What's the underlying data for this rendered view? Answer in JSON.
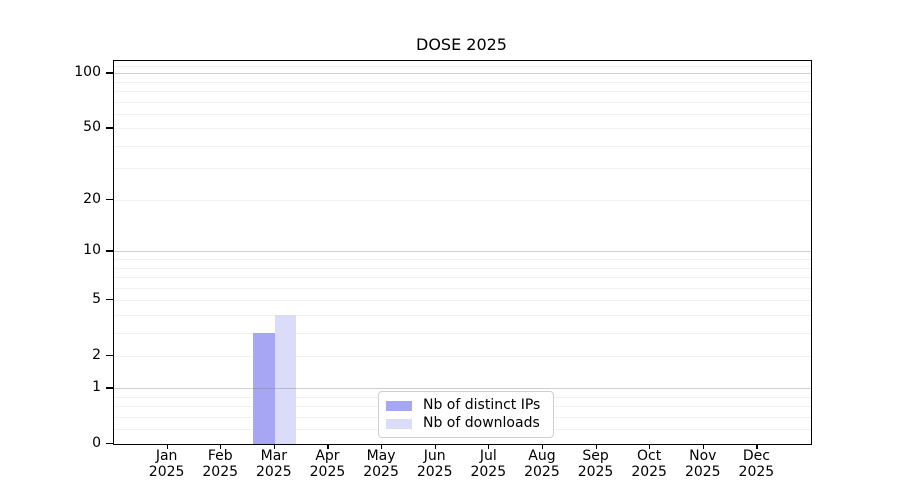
{
  "figure": {
    "background": "#ffffff",
    "text_color": "#000000"
  },
  "chart_data": {
    "type": "bar",
    "title": "DOSE 2025",
    "x_categories": [
      {
        "month": "Jan",
        "year": "2025"
      },
      {
        "month": "Feb",
        "year": "2025"
      },
      {
        "month": "Mar",
        "year": "2025"
      },
      {
        "month": "Apr",
        "year": "2025"
      },
      {
        "month": "May",
        "year": "2025"
      },
      {
        "month": "Jun",
        "year": "2025"
      },
      {
        "month": "Jul",
        "year": "2025"
      },
      {
        "month": "Aug",
        "year": "2025"
      },
      {
        "month": "Sep",
        "year": "2025"
      },
      {
        "month": "Oct",
        "year": "2025"
      },
      {
        "month": "Nov",
        "year": "2025"
      },
      {
        "month": "Dec",
        "year": "2025"
      }
    ],
    "series": [
      {
        "name": "Nb of distinct IPs",
        "color": "#a6a6f4",
        "values": [
          0,
          0,
          3,
          0,
          0,
          0,
          0,
          0,
          0,
          0,
          0,
          0
        ]
      },
      {
        "name": "Nb of downloads",
        "color": "#dbdbfa",
        "values": [
          0,
          0,
          4,
          0,
          0,
          0,
          0,
          0,
          0,
          0,
          0,
          0
        ]
      }
    ],
    "yscale": "log1p",
    "ylim": [
      0,
      117
    ],
    "yticks": [
      {
        "value": 0,
        "label": "0"
      },
      {
        "value": 1,
        "label": "1"
      },
      {
        "value": 2,
        "label": "2"
      },
      {
        "value": 5,
        "label": "5"
      },
      {
        "value": 10,
        "label": "10"
      },
      {
        "value": 20,
        "label": "20"
      },
      {
        "value": 50,
        "label": "50"
      },
      {
        "value": 100,
        "label": "100"
      }
    ],
    "grid_major_values": [
      1,
      10,
      100
    ],
    "grid_minor_values": [
      0.2,
      0.4,
      0.6,
      0.8,
      2,
      3,
      4,
      5,
      6,
      7,
      8,
      9,
      20,
      30,
      40,
      50,
      60,
      70,
      80,
      90,
      110
    ],
    "legend_position": "bottom-center",
    "grid_on": true
  }
}
